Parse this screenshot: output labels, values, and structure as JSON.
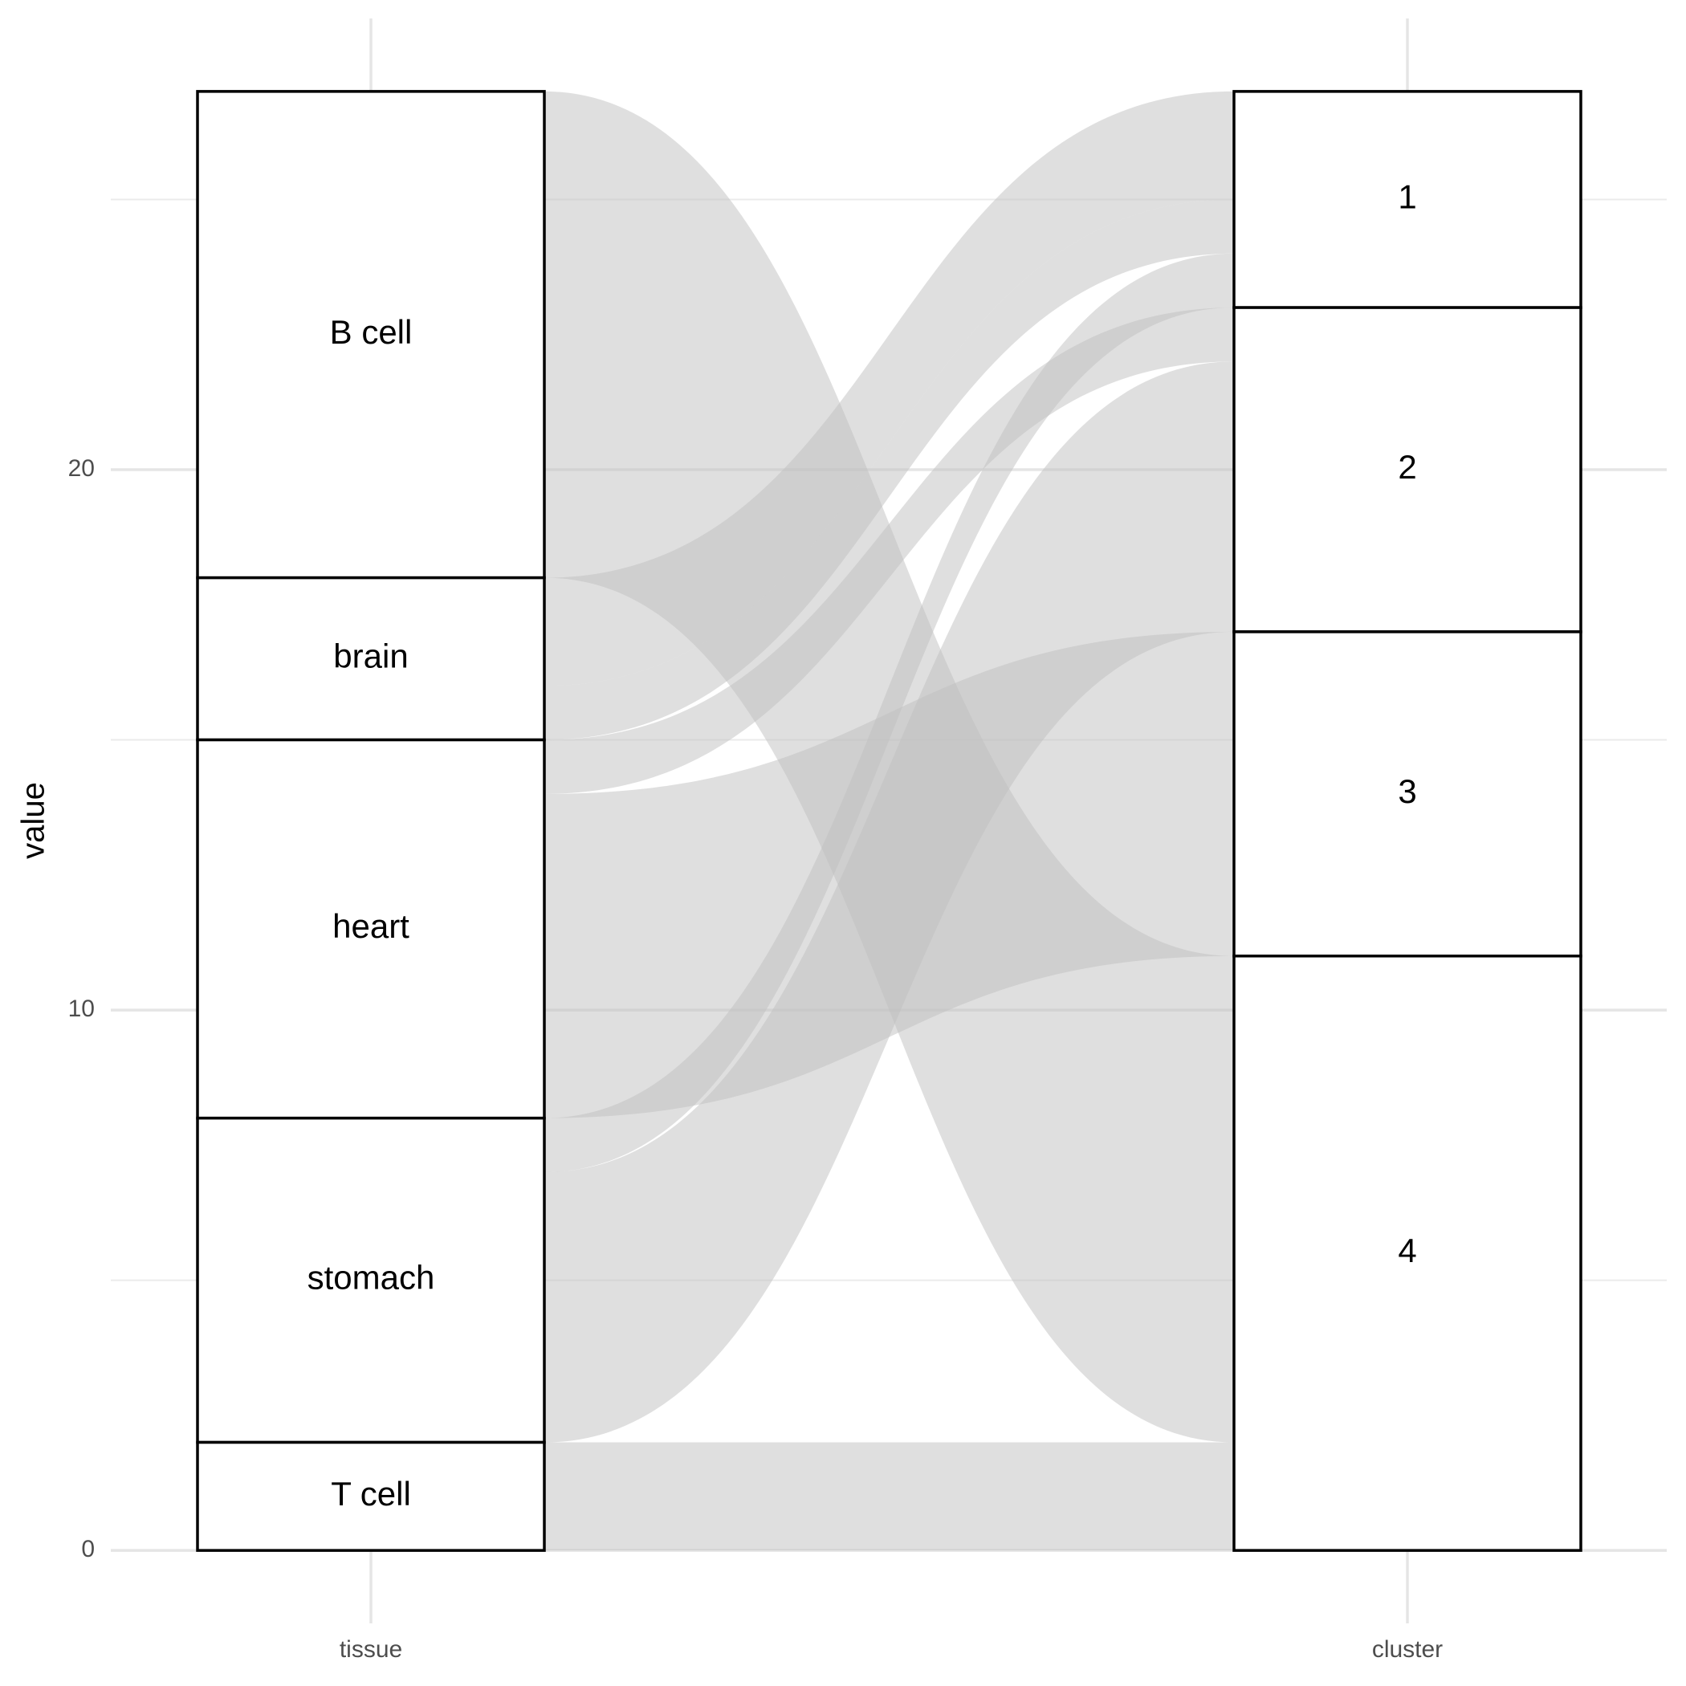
{
  "chart_data": {
    "type": "alluvial",
    "axes": [
      "tissue",
      "cluster"
    ],
    "y_label": "value",
    "strata": [
      [
        "B cell",
        "brain",
        "heart",
        "stomach",
        "T cell"
      ],
      [
        "1",
        "2",
        "3",
        "4"
      ]
    ],
    "flows": [
      {
        "from": "B cell",
        "to": "4",
        "value": 9
      },
      {
        "from": "brain",
        "to": "1",
        "value": 2
      },
      {
        "from": "brain",
        "to": "1",
        "value": 1
      },
      {
        "from": "heart",
        "to": "2",
        "value": 1
      },
      {
        "from": "heart",
        "to": "3",
        "value": 6
      },
      {
        "from": "stomach",
        "to": "1",
        "value": 1
      },
      {
        "from": "stomach",
        "to": "2",
        "value": 5
      },
      {
        "from": "T cell",
        "to": "4",
        "value": 2
      }
    ],
    "ylim": [
      -1.35,
      28.35
    ],
    "yticks": [
      0,
      10,
      20
    ],
    "minor_yticks": [
      5,
      15,
      25
    ],
    "grid": true,
    "flow_color": "#c0c0c0"
  }
}
